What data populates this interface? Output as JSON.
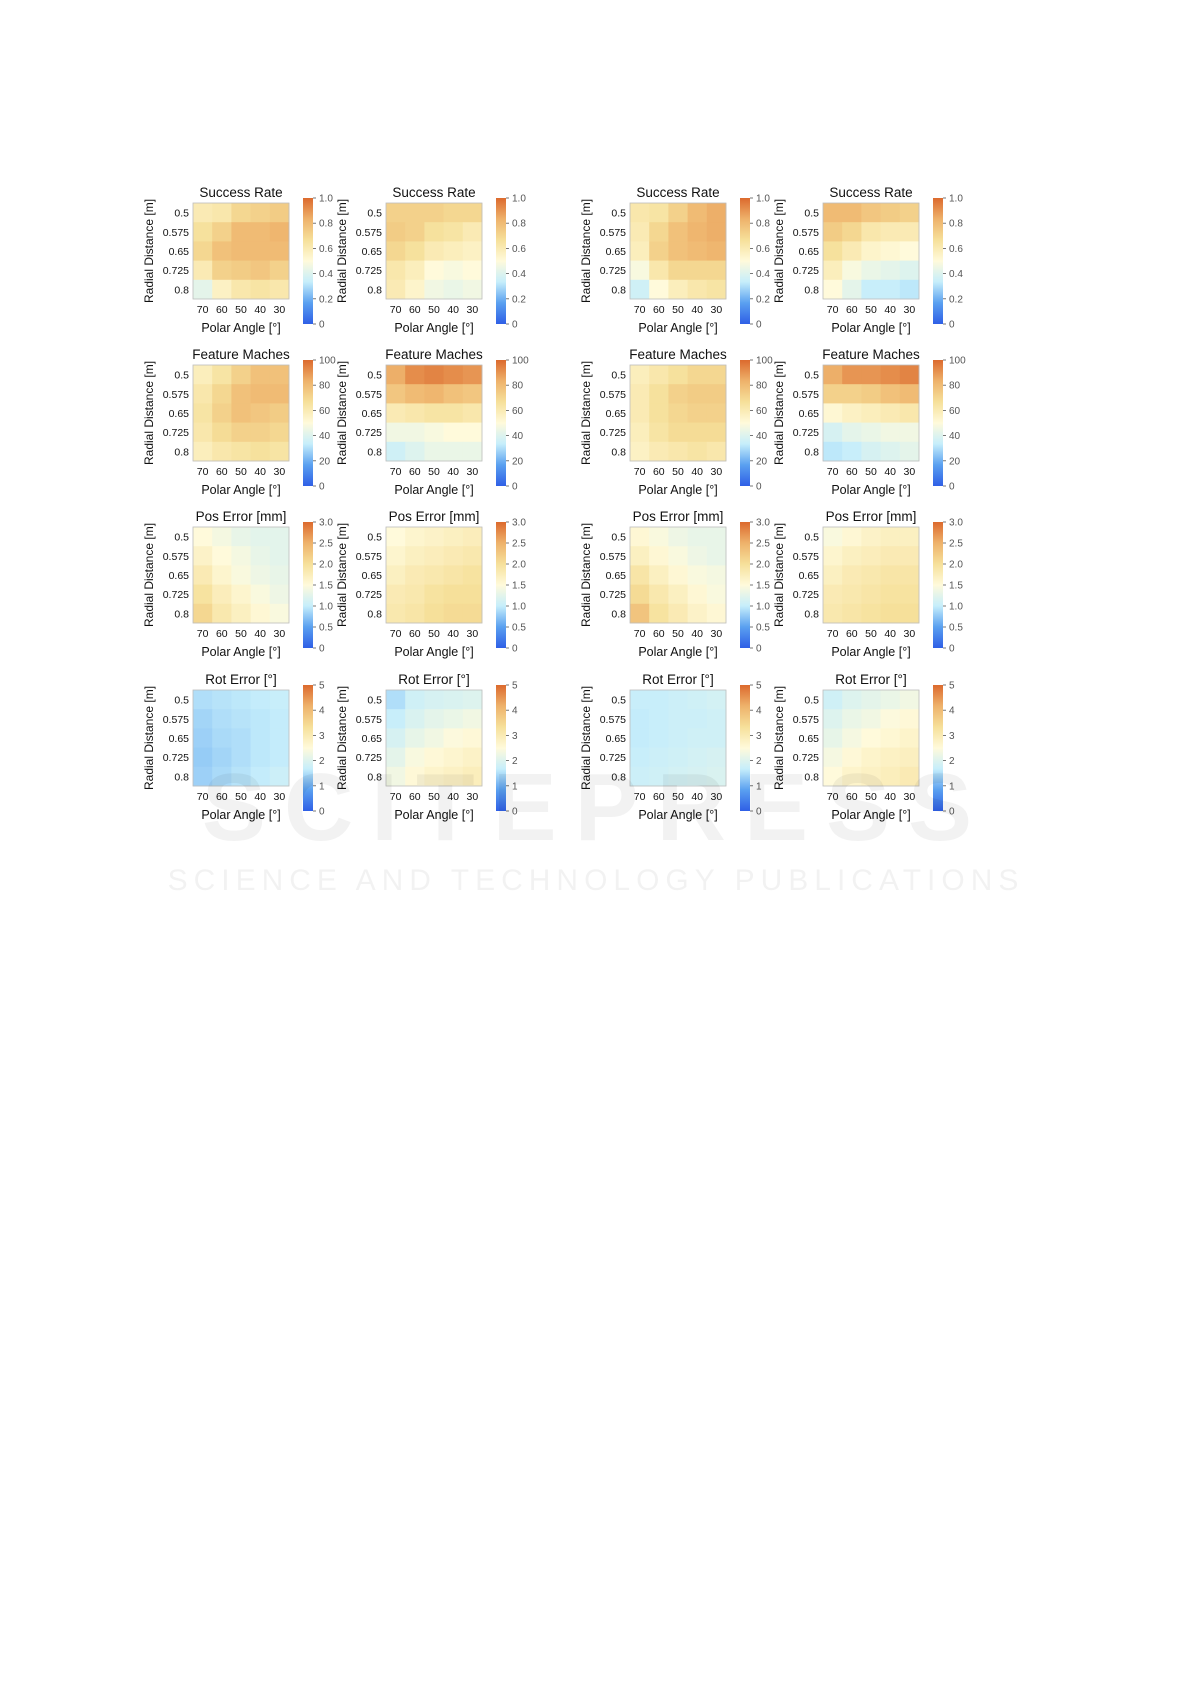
{
  "figure": {
    "watermark": "SCITEPRESS",
    "watermark_sub": "SCIENCE AND TECHNOLOGY PUBLICATIONS"
  },
  "colormap": [
    "#2f5fe6",
    "#5aa0f0",
    "#c6eefb",
    "#fffadb",
    "#f6e09a",
    "#eeb26b",
    "#dc6a2e"
  ],
  "chart_data": [
    {
      "type": "heatmap",
      "title": "Success Rate",
      "xlabel": "Polar Angle [°]",
      "ylabel": "Radial Distance [m]",
      "x": [
        "70",
        "60",
        "50",
        "40",
        "30"
      ],
      "y": [
        "0.5",
        "0.575",
        "0.65",
        "0.725",
        "0.8"
      ],
      "zlim": [
        0,
        1
      ],
      "cbar_ticks": [
        "0",
        "0.2",
        "0.4",
        "0.6",
        "0.8",
        "1.0"
      ],
      "values": [
        [
          0.6,
          0.62,
          0.7,
          0.72,
          0.74
        ],
        [
          0.66,
          0.72,
          0.8,
          0.8,
          0.82
        ],
        [
          0.7,
          0.78,
          0.8,
          0.8,
          0.8
        ],
        [
          0.6,
          0.72,
          0.74,
          0.76,
          0.72
        ],
        [
          0.42,
          0.56,
          0.62,
          0.64,
          0.62
        ]
      ]
    },
    {
      "type": "heatmap",
      "title": "Success Rate",
      "xlabel": "Polar Angle [°]",
      "ylabel": "Radial Distance [m]",
      "x": [
        "70",
        "60",
        "50",
        "40",
        "30"
      ],
      "y": [
        "0.5",
        "0.575",
        "0.65",
        "0.725",
        "0.8"
      ],
      "zlim": [
        0,
        1
      ],
      "cbar_ticks": [
        "0",
        "0.2",
        "0.4",
        "0.6",
        "0.8",
        "1.0"
      ],
      "values": [
        [
          0.72,
          0.72,
          0.72,
          0.7,
          0.7
        ],
        [
          0.74,
          0.72,
          0.66,
          0.64,
          0.6
        ],
        [
          0.7,
          0.66,
          0.6,
          0.58,
          0.56
        ],
        [
          0.62,
          0.58,
          0.5,
          0.48,
          0.5
        ],
        [
          0.6,
          0.54,
          0.46,
          0.44,
          0.46
        ]
      ]
    },
    {
      "type": "heatmap",
      "title": "Success Rate",
      "xlabel": "Polar Angle [°]",
      "ylabel": "Radial Distance [m]",
      "x": [
        "70",
        "60",
        "50",
        "40",
        "30"
      ],
      "y": [
        "0.5",
        "0.575",
        "0.65",
        "0.725",
        "0.8"
      ],
      "zlim": [
        0,
        1
      ],
      "cbar_ticks": [
        "0",
        "0.2",
        "0.4",
        "0.6",
        "0.8",
        "1.0"
      ],
      "values": [
        [
          0.62,
          0.64,
          0.72,
          0.8,
          0.84
        ],
        [
          0.6,
          0.7,
          0.78,
          0.82,
          0.84
        ],
        [
          0.58,
          0.72,
          0.78,
          0.8,
          0.82
        ],
        [
          0.48,
          0.62,
          0.7,
          0.7,
          0.7
        ],
        [
          0.36,
          0.5,
          0.58,
          0.62,
          0.64
        ]
      ]
    },
    {
      "type": "heatmap",
      "title": "Success Rate",
      "xlabel": "Polar Angle [°]",
      "ylabel": "Radial Distance [m]",
      "x": [
        "70",
        "60",
        "50",
        "40",
        "30"
      ],
      "y": [
        "0.5",
        "0.575",
        "0.65",
        "0.725",
        "0.8"
      ],
      "zlim": [
        0,
        1
      ],
      "cbar_ticks": [
        "0",
        "0.2",
        "0.4",
        "0.6",
        "0.8",
        "1.0"
      ],
      "values": [
        [
          0.8,
          0.8,
          0.76,
          0.74,
          0.72
        ],
        [
          0.74,
          0.7,
          0.62,
          0.6,
          0.6
        ],
        [
          0.66,
          0.6,
          0.54,
          0.52,
          0.5
        ],
        [
          0.58,
          0.48,
          0.44,
          0.42,
          0.4
        ],
        [
          0.5,
          0.42,
          0.34,
          0.34,
          0.32
        ]
      ]
    },
    {
      "type": "heatmap",
      "title": "Feature Maches",
      "xlabel": "Polar Angle [°]",
      "ylabel": "Radial Distance [m]",
      "x": [
        "70",
        "60",
        "50",
        "40",
        "30"
      ],
      "y": [
        "0.5",
        "0.575",
        "0.65",
        "0.725",
        "0.8"
      ],
      "zlim": [
        0,
        100
      ],
      "cbar_ticks": [
        "0",
        "20",
        "40",
        "60",
        "80",
        "100"
      ],
      "values": [
        [
          58,
          64,
          72,
          78,
          78
        ],
        [
          62,
          70,
          78,
          80,
          80
        ],
        [
          64,
          72,
          78,
          76,
          74
        ],
        [
          62,
          68,
          72,
          72,
          70
        ],
        [
          58,
          62,
          64,
          66,
          64
        ]
      ]
    },
    {
      "type": "heatmap",
      "title": "Feature Maches",
      "xlabel": "Polar Angle [°]",
      "ylabel": "Radial Distance [m]",
      "x": [
        "70",
        "60",
        "50",
        "40",
        "30"
      ],
      "y": [
        "0.5",
        "0.575",
        "0.65",
        "0.725",
        "0.8"
      ],
      "zlim": [
        0,
        100
      ],
      "cbar_ticks": [
        "0",
        "20",
        "40",
        "60",
        "80",
        "100"
      ],
      "values": [
        [
          84,
          92,
          94,
          92,
          90
        ],
        [
          76,
          80,
          82,
          78,
          76
        ],
        [
          60,
          62,
          64,
          64,
          62
        ],
        [
          46,
          46,
          48,
          50,
          50
        ],
        [
          36,
          40,
          44,
          44,
          44
        ]
      ]
    },
    {
      "type": "heatmap",
      "title": "Feature Maches",
      "xlabel": "Polar Angle [°]",
      "ylabel": "Radial Distance [m]",
      "x": [
        "70",
        "60",
        "50",
        "40",
        "30"
      ],
      "y": [
        "0.5",
        "0.575",
        "0.65",
        "0.725",
        "0.8"
      ],
      "zlim": [
        0,
        100
      ],
      "cbar_ticks": [
        "0",
        "20",
        "40",
        "60",
        "80",
        "100"
      ],
      "values": [
        [
          58,
          62,
          66,
          70,
          70
        ],
        [
          60,
          66,
          72,
          74,
          74
        ],
        [
          60,
          66,
          70,
          72,
          72
        ],
        [
          58,
          64,
          68,
          68,
          68
        ],
        [
          56,
          60,
          62,
          64,
          62
        ]
      ]
    },
    {
      "type": "heatmap",
      "title": "Feature Maches",
      "xlabel": "Polar Angle [°]",
      "ylabel": "Radial Distance [m]",
      "x": [
        "70",
        "60",
        "50",
        "40",
        "30"
      ],
      "y": [
        "0.5",
        "0.575",
        "0.65",
        "0.725",
        "0.8"
      ],
      "zlim": [
        0,
        100
      ],
      "cbar_ticks": [
        "0",
        "20",
        "40",
        "60",
        "80",
        "100"
      ],
      "values": [
        [
          84,
          90,
          90,
          92,
          94
        ],
        [
          72,
          72,
          74,
          78,
          80
        ],
        [
          52,
          56,
          58,
          60,
          62
        ],
        [
          38,
          42,
          44,
          46,
          46
        ],
        [
          32,
          34,
          38,
          40,
          42
        ]
      ]
    },
    {
      "type": "heatmap",
      "title": "Pos Error [mm]",
      "xlabel": "Polar Angle [°]",
      "ylabel": "Radial Distance [m]",
      "x": [
        "70",
        "60",
        "50",
        "40",
        "30"
      ],
      "y": [
        "0.5",
        "0.575",
        "0.65",
        "0.725",
        "0.8"
      ],
      "zlim": [
        0,
        3
      ],
      "cbar_ticks": [
        "0",
        "0.5",
        "1.0",
        "1.5",
        "2.0",
        "2.5",
        "3.0"
      ],
      "values": [
        [
          1.5,
          1.4,
          1.3,
          1.25,
          1.25
        ],
        [
          1.65,
          1.5,
          1.4,
          1.3,
          1.25
        ],
        [
          1.8,
          1.6,
          1.45,
          1.35,
          1.3
        ],
        [
          1.95,
          1.75,
          1.6,
          1.45,
          1.35
        ],
        [
          2.1,
          1.85,
          1.7,
          1.55,
          1.45
        ]
      ]
    },
    {
      "type": "heatmap",
      "title": "Pos Error [mm]",
      "xlabel": "Polar Angle [°]",
      "ylabel": "Radial Distance [m]",
      "x": [
        "70",
        "60",
        "50",
        "40",
        "30"
      ],
      "y": [
        "0.5",
        "0.575",
        "0.65",
        "0.725",
        "0.8"
      ],
      "zlim": [
        0,
        3
      ],
      "cbar_ticks": [
        "0",
        "0.5",
        "1.0",
        "1.5",
        "2.0",
        "2.5",
        "3.0"
      ],
      "values": [
        [
          1.5,
          1.6,
          1.65,
          1.7,
          1.75
        ],
        [
          1.6,
          1.7,
          1.75,
          1.8,
          1.85
        ],
        [
          1.7,
          1.8,
          1.85,
          1.9,
          1.95
        ],
        [
          1.8,
          1.85,
          1.95,
          2.0,
          2.0
        ],
        [
          1.85,
          1.9,
          2.0,
          2.05,
          2.05
        ]
      ]
    },
    {
      "type": "heatmap",
      "title": "Pos Error [mm]",
      "xlabel": "Polar Angle [°]",
      "ylabel": "Radial Distance [m]",
      "x": [
        "70",
        "60",
        "50",
        "40",
        "30"
      ],
      "y": [
        "0.5",
        "0.575",
        "0.65",
        "0.725",
        "0.8"
      ],
      "zlim": [
        0,
        3
      ],
      "cbar_ticks": [
        "0",
        "0.5",
        "1.0",
        "1.5",
        "2.0",
        "2.5",
        "3.0"
      ],
      "values": [
        [
          1.55,
          1.45,
          1.35,
          1.3,
          1.3
        ],
        [
          1.7,
          1.55,
          1.45,
          1.35,
          1.3
        ],
        [
          1.9,
          1.7,
          1.55,
          1.45,
          1.4
        ],
        [
          2.05,
          1.85,
          1.7,
          1.55,
          1.45
        ],
        [
          2.3,
          1.95,
          1.8,
          1.65,
          1.55
        ]
      ]
    },
    {
      "type": "heatmap",
      "title": "Pos Error [mm]",
      "xlabel": "Polar Angle [°]",
      "ylabel": "Radial Distance [m]",
      "x": [
        "70",
        "60",
        "50",
        "40",
        "30"
      ],
      "y": [
        "0.5",
        "0.575",
        "0.65",
        "0.725",
        "0.8"
      ],
      "zlim": [
        0,
        3
      ],
      "cbar_ticks": [
        "0",
        "0.5",
        "1.0",
        "1.5",
        "2.0",
        "2.5",
        "3.0"
      ],
      "values": [
        [
          1.45,
          1.55,
          1.65,
          1.7,
          1.7
        ],
        [
          1.6,
          1.7,
          1.75,
          1.8,
          1.8
        ],
        [
          1.7,
          1.8,
          1.85,
          1.9,
          1.9
        ],
        [
          1.8,
          1.85,
          1.9,
          1.95,
          1.95
        ],
        [
          1.85,
          1.9,
          1.95,
          2.0,
          2.0
        ]
      ]
    },
    {
      "type": "heatmap",
      "title": "Rot Error [°]",
      "xlabel": "Polar Angle [°]",
      "ylabel": "Radial Distance [m]",
      "x": [
        "70",
        "60",
        "50",
        "40",
        "30"
      ],
      "y": [
        "0.5",
        "0.575",
        "0.65",
        "0.725",
        "0.8"
      ],
      "zlim": [
        0,
        5
      ],
      "cbar_ticks": [
        "0",
        "1",
        "2",
        "3",
        "4",
        "5"
      ],
      "values": [
        [
          1.5,
          1.55,
          1.6,
          1.65,
          1.7
        ],
        [
          1.4,
          1.5,
          1.55,
          1.6,
          1.65
        ],
        [
          1.35,
          1.45,
          1.5,
          1.6,
          1.65
        ],
        [
          1.3,
          1.4,
          1.5,
          1.6,
          1.65
        ],
        [
          1.35,
          1.45,
          1.55,
          1.65,
          1.75
        ]
      ]
    },
    {
      "type": "heatmap",
      "title": "Rot Error [°]",
      "xlabel": "Polar Angle [°]",
      "ylabel": "Radial Distance [m]",
      "x": [
        "70",
        "60",
        "50",
        "40",
        "30"
      ],
      "y": [
        "0.5",
        "0.575",
        "0.65",
        "0.725",
        "0.8"
      ],
      "zlim": [
        0,
        5
      ],
      "cbar_ticks": [
        "0",
        "1",
        "2",
        "3",
        "4",
        "5"
      ],
      "values": [
        [
          1.5,
          1.8,
          1.9,
          1.95,
          2.0
        ],
        [
          1.7,
          1.95,
          2.1,
          2.2,
          2.3
        ],
        [
          1.9,
          2.15,
          2.3,
          2.45,
          2.55
        ],
        [
          2.1,
          2.4,
          2.55,
          2.65,
          2.75
        ],
        [
          2.3,
          2.55,
          2.7,
          2.8,
          2.9
        ]
      ]
    },
    {
      "type": "heatmap",
      "title": "Rot Error [°]",
      "xlabel": "Polar Angle [°]",
      "ylabel": "Radial Distance [m]",
      "x": [
        "70",
        "60",
        "50",
        "40",
        "30"
      ],
      "y": [
        "0.5",
        "0.575",
        "0.65",
        "0.725",
        "0.8"
      ],
      "zlim": [
        0,
        5
      ],
      "cbar_ticks": [
        "0",
        "1",
        "2",
        "3",
        "4",
        "5"
      ],
      "values": [
        [
          1.7,
          1.7,
          1.75,
          1.8,
          1.85
        ],
        [
          1.65,
          1.7,
          1.75,
          1.75,
          1.8
        ],
        [
          1.65,
          1.7,
          1.75,
          1.8,
          1.8
        ],
        [
          1.7,
          1.75,
          1.8,
          1.85,
          1.9
        ],
        [
          1.75,
          1.8,
          1.85,
          1.9,
          1.95
        ]
      ]
    },
    {
      "type": "heatmap",
      "title": "Rot Error [°]",
      "xlabel": "Polar Angle [°]",
      "ylabel": "Radial Distance [m]",
      "x": [
        "70",
        "60",
        "50",
        "40",
        "30"
      ],
      "y": [
        "0.5",
        "0.575",
        "0.65",
        "0.725",
        "0.8"
      ],
      "zlim": [
        0,
        5
      ],
      "cbar_ticks": [
        "0",
        "1",
        "2",
        "3",
        "4",
        "5"
      ],
      "values": [
        [
          1.8,
          2.0,
          2.1,
          2.2,
          2.3
        ],
        [
          2.0,
          2.2,
          2.3,
          2.45,
          2.55
        ],
        [
          2.15,
          2.35,
          2.5,
          2.6,
          2.7
        ],
        [
          2.35,
          2.55,
          2.7,
          2.8,
          2.85
        ],
        [
          2.5,
          2.7,
          2.8,
          2.9,
          3.0
        ]
      ]
    }
  ]
}
